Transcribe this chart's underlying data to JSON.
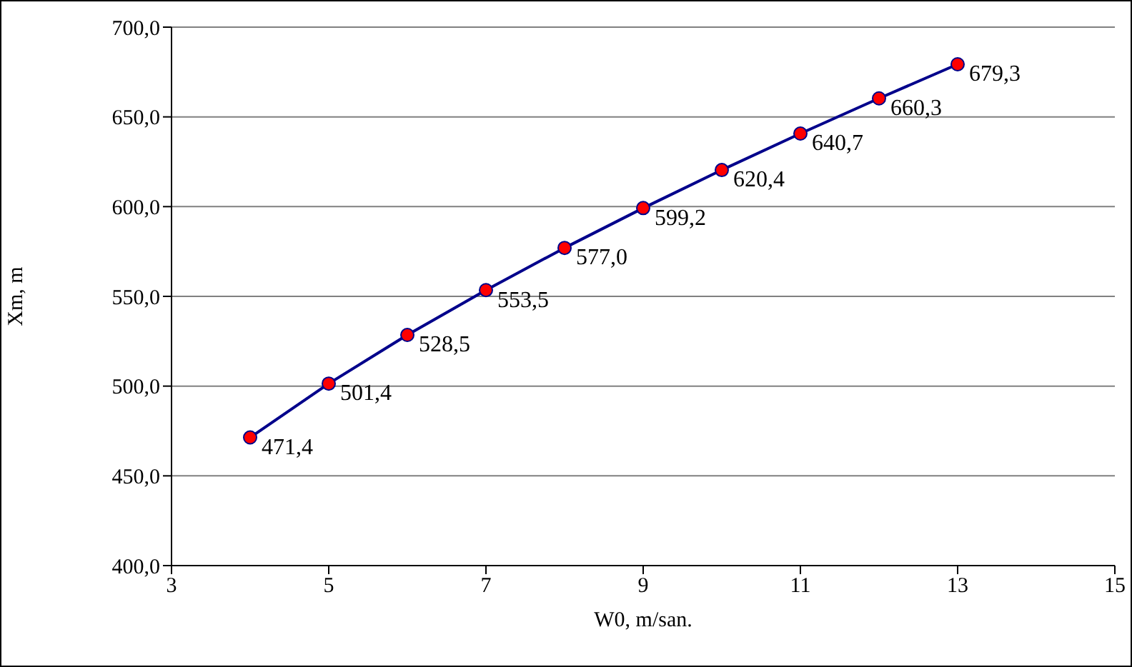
{
  "chart_data": {
    "type": "line",
    "xlabel": "W0, m/san.",
    "ylabel": "Xm, m",
    "x": [
      4,
      5,
      6,
      7,
      8,
      9,
      10,
      11,
      12,
      13
    ],
    "series": [
      {
        "color": "#00008b",
        "colors": [
          "#ff0000",
          "#ff0000",
          "#ff0000",
          "#ff0000",
          "#ff0000",
          "#ff0000",
          "#ff0000",
          "#ff0000",
          "#ff0000",
          "#ff0000"
        ],
        "values": [
          471.4,
          501.4,
          528.5,
          553.5,
          577.0,
          599.2,
          620.4,
          640.7,
          660.3,
          679.3
        ],
        "value_labels": [
          "471,4",
          "501,4",
          "528,5",
          "553,5",
          "577,0",
          "599,2",
          "620,4",
          "640,7",
          "660,3",
          "679,3"
        ]
      }
    ],
    "xlim": [
      3,
      15
    ],
    "xticks": [
      3,
      5,
      7,
      9,
      11,
      13,
      15
    ],
    "ylim": [
      400,
      700
    ],
    "yticks": [
      {
        "value": 400,
        "label": "400,0"
      },
      {
        "value": 450,
        "label": "450,0"
      },
      {
        "value": 500,
        "label": "500,0"
      },
      {
        "value": 550,
        "label": "550,0"
      },
      {
        "value": 600,
        "label": "600,0"
      },
      {
        "value": 650,
        "label": "650,0"
      },
      {
        "value": 700,
        "label": "700,0"
      }
    ],
    "grid": "y",
    "marker": "circle",
    "line_style": "solid"
  }
}
